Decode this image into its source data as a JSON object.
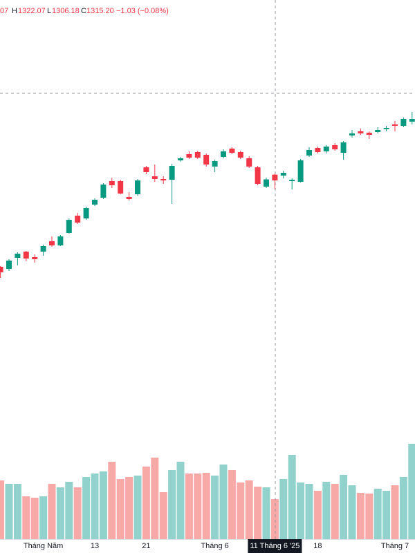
{
  "chart_data": {
    "type": "candlestick",
    "categories": [
      null,
      null,
      null,
      null,
      null,
      "Tháng Năm",
      null,
      null,
      null,
      null,
      null,
      "13",
      null,
      null,
      null,
      null,
      null,
      "21",
      null,
      null,
      null,
      null,
      null,
      null,
      null,
      "Tháng 6",
      null,
      null,
      null,
      null,
      null,
      null,
      "11 Tháng 6 '25",
      null,
      null,
      null,
      null,
      "18",
      null,
      null,
      null,
      null,
      null,
      null,
      null,
      null,
      "Tháng 7",
      null,
      null
    ],
    "highlighted_index": 32,
    "open": [
      1227.7,
      1225.6,
      1236.8,
      1243.1,
      1237.5,
      1243.1,
      1253.6,
      1249.4,
      1262.0,
      1279.5,
      1276.7,
      1290.7,
      1297.7,
      1314.5,
      1314.5,
      1298.4,
      1301.2,
      1328.5,
      1319.4,
      1316.6,
      1315.9,
      1335.5,
      1341.8,
      1343.9,
      1341.1,
      1329.2,
      1339.0,
      1347.4,
      1343.9,
      1337.6,
      1328.5,
      1308.9,
      1321.07,
      1320.1,
      1314.5,
      1313.8,
      1340.4,
      1348.1,
      1344.6,
      1350.9,
      1343.2,
      1360.7,
      1364.9,
      1363.5,
      1364.2,
      1367.0,
      1371.9,
      1370.5,
      1374.7
    ],
    "high": [
      1228.4,
      1235.4,
      1242.4,
      1243.8,
      1240.3,
      1250.1,
      1258.5,
      1259.9,
      1276.7,
      1282.3,
      1288.6,
      1297.0,
      1312.4,
      1318.0,
      1315.9,
      1303.3,
      1316.6,
      1329.9,
      1331.3,
      1319.4,
      1332.0,
      1339.0,
      1344.6,
      1345.3,
      1342.5,
      1336.2,
      1346.7,
      1348.8,
      1345.3,
      1339.7,
      1329.9,
      1318.0,
      1322.07,
      1325.0,
      1317.3,
      1336.9,
      1348.8,
      1349.5,
      1350.9,
      1353.0,
      1355.1,
      1366.3,
      1367.7,
      1364.9,
      1369.1,
      1370.5,
      1375.4,
      1378.9,
      1384.5
    ],
    "low": [
      1216.5,
      1223.5,
      1229.1,
      1233.3,
      1231.9,
      1238.9,
      1248.0,
      1248.7,
      1261.3,
      1271.1,
      1275.3,
      1289.3,
      1296.3,
      1307.5,
      1301.2,
      1294.9,
      1299.8,
      1321.5,
      1313.8,
      1311.7,
      1291.4,
      1334.1,
      1336.9,
      1336.9,
      1329.2,
      1323.6,
      1337.6,
      1341.8,
      1336.9,
      1327.8,
      1310.3,
      1307.5,
      1306.18,
      1317.3,
      1306.1,
      1313.1,
      1339.0,
      1342.5,
      1342.5,
      1345.3,
      1336.2,
      1358.6,
      1361.4,
      1357.2,
      1362.8,
      1364.9,
      1364.9,
      1369.1,
      1371.9
    ],
    "close": [
      1222.1,
      1234.0,
      1241.0,
      1236.1,
      1235.4,
      1248.7,
      1249.4,
      1258.5,
      1275.3,
      1272.5,
      1287.2,
      1295.6,
      1311.0,
      1310.3,
      1301.9,
      1296.3,
      1315.2,
      1323.6,
      1316.6,
      1315.2,
      1329.9,
      1337.6,
      1338.3,
      1338.3,
      1331.3,
      1334.8,
      1344.6,
      1343.2,
      1338.3,
      1329.2,
      1311.7,
      1316.23,
      1315.2,
      1322.9,
      1315.9,
      1335.5,
      1346.0,
      1343.9,
      1349.5,
      1346.7,
      1353.7,
      1362.8,
      1362.8,
      1361.4,
      1366.3,
      1368.4,
      1370.5,
      1377.5,
      1377.5
    ],
    "volume": [
      850,
      800,
      800,
      620,
      600,
      620,
      800,
      750,
      830,
      750,
      900,
      950,
      980,
      1120,
      870,
      900,
      920,
      1050,
      1180,
      680,
      1000,
      1120,
      950,
      950,
      960,
      920,
      1080,
      1000,
      820,
      850,
      760,
      750,
      580,
      870,
      1220,
      820,
      800,
      700,
      830,
      800,
      930,
      780,
      670,
      660,
      730,
      700,
      780,
      900,
      1380
    ],
    "ylim": [
      951.9,
      1497.9
    ],
    "vlim": [
      0,
      2000
    ],
    "up_color": "#089981",
    "down_color": "#f23645",
    "volume_up_color": "#92d2cc",
    "volume_down_color": "#f7a9a7",
    "ohlc_legend": {
      "open_tail": "07",
      "high_label": "H",
      "high": "1322.07",
      "low_label": "L",
      "low": "1306.18",
      "close_label": "C",
      "close": "1315.20",
      "change": "−1.03 (−0.08%)"
    }
  }
}
